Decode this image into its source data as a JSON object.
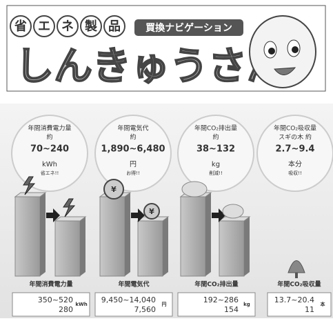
{
  "header": {
    "logo_chars": [
      "省",
      "エ",
      "ネ",
      "製",
      "品"
    ],
    "subtitle": "買換ナビゲーション",
    "title": "しんきゅうさん"
  },
  "summary": [
    {
      "label": "年間消費電力量",
      "prefix": "約",
      "range": "70~240",
      "unit": "kWh",
      "note": "省エネ!!"
    },
    {
      "label": "年間電気代",
      "prefix": "約",
      "range": "1,890~6,480",
      "unit": "円",
      "note": "お得!!"
    },
    {
      "label": "年間CO₂排出量",
      "prefix": "約",
      "range": "38~132",
      "unit": "kg",
      "note": "削減!!"
    },
    {
      "label": "年間CO₂吸収量",
      "prefix": "スギの木 約",
      "range": "2.7~9.4",
      "unit": "本分",
      "note": "吸収!!"
    }
  ],
  "details": [
    {
      "label": "年間消費電力量",
      "range": "350~520",
      "value": "280",
      "unit": "kWh"
    },
    {
      "label": "年間電気代",
      "range": "9,450~14,040",
      "value": "7,560",
      "unit": "円"
    },
    {
      "label": "年間CO₂排出量",
      "range": "192~286",
      "value": "154",
      "unit": "kg"
    },
    {
      "label": "年間CO₂吸収量",
      "range": "13.7~20.4",
      "value": "11",
      "unit": "本"
    }
  ]
}
